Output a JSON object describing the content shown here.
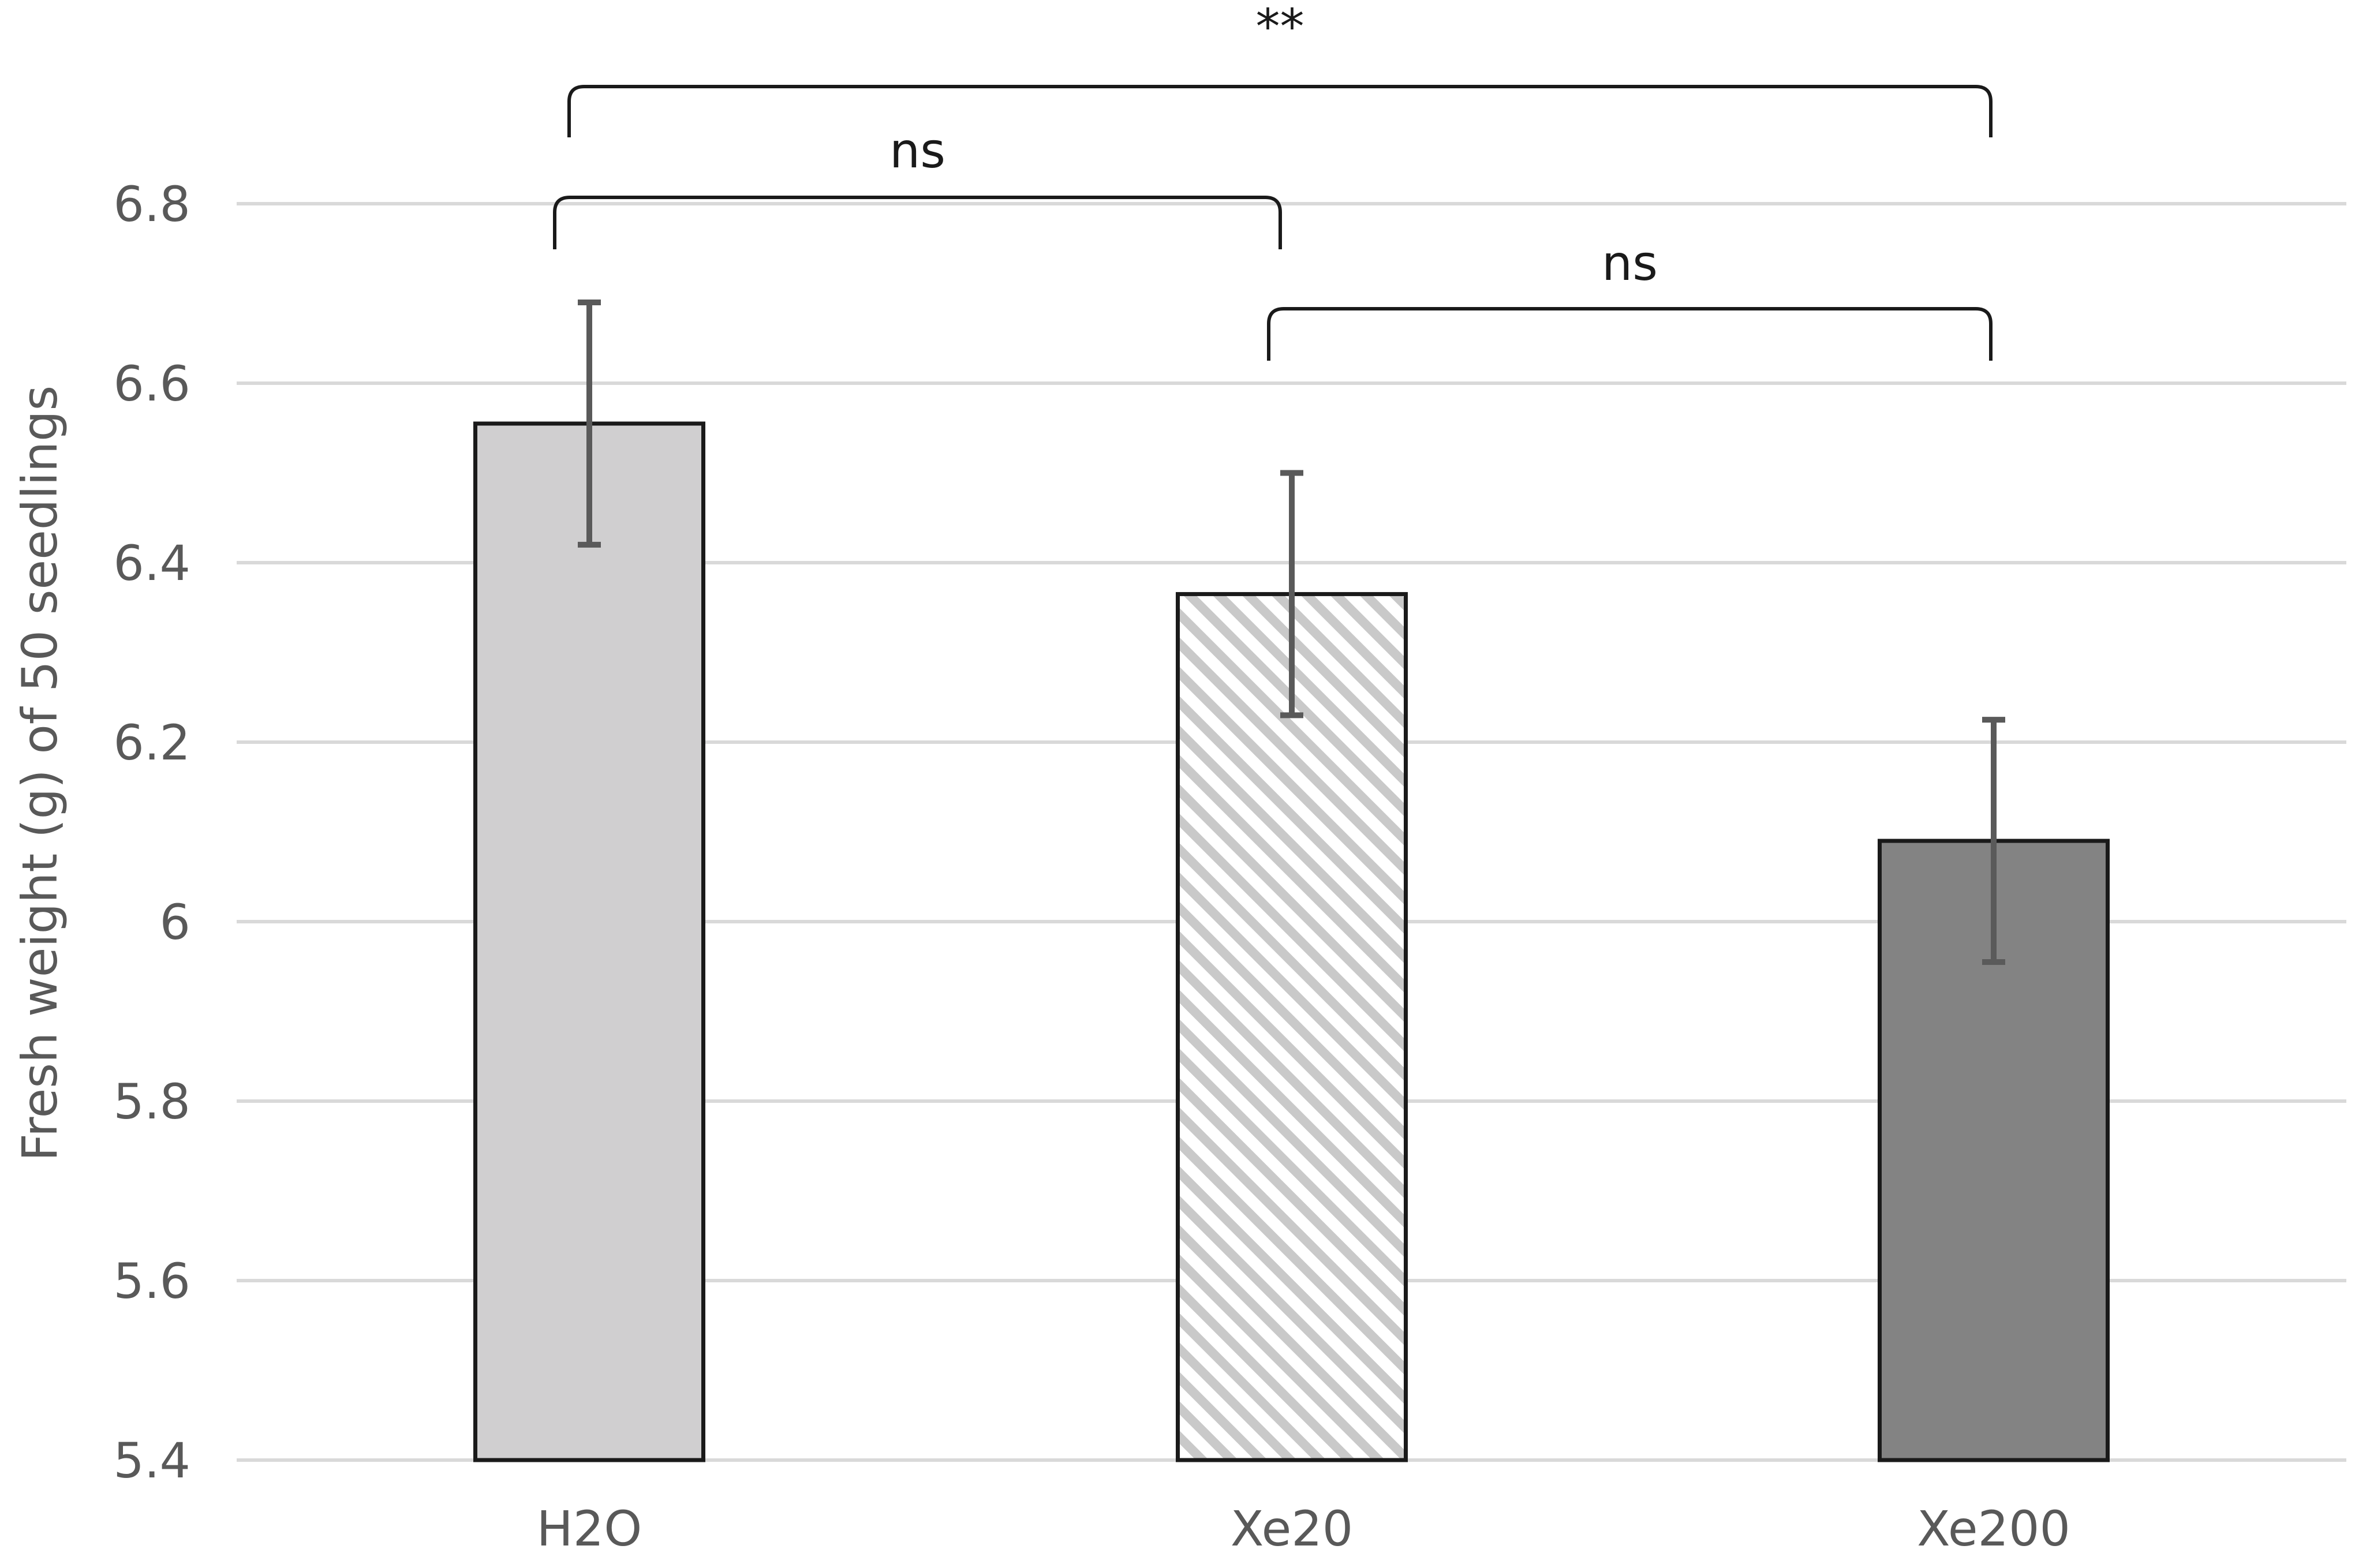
{
  "chart_data": {
    "type": "bar",
    "title": "",
    "xlabel": "",
    "ylabel": "Fresh weight (g) of 50 seedlings",
    "categories": [
      "H2O",
      "Xe20",
      "Xe200"
    ],
    "values": [
      6.555,
      6.365,
      6.09
    ],
    "error": [
      0.135,
      0.135,
      0.135
    ],
    "ylim": [
      5.4,
      6.8
    ],
    "yticks": [
      5.4,
      5.6,
      5.8,
      6.0,
      6.2,
      6.4,
      6.6,
      6.8
    ],
    "ytick_labels": [
      "5.4",
      "5.6",
      "5.8",
      "6",
      "6.2",
      "6.4",
      "6.6",
      "6.8"
    ],
    "grid": true,
    "bar_styles": [
      {
        "fill": "#d0cfd0",
        "pattern": "solid"
      },
      {
        "fill": "#ffffff",
        "pattern": "diagonal-stripes",
        "stripe_color": "#c9c9c9"
      },
      {
        "fill": "#838383",
        "pattern": "solid"
      }
    ],
    "colors": {
      "bar_edge": "#1a1a1a",
      "error_bar": "#5a5a5a",
      "grid": "#d9d9d9",
      "tick_label": "#595959",
      "annotation": "#1a1a1a"
    },
    "annotations": [
      {
        "from": "H2O",
        "to": "Xe200",
        "label": "**",
        "level": 3
      },
      {
        "from": "H2O",
        "to": "Xe20",
        "label": "ns",
        "level": 2
      },
      {
        "from": "Xe20",
        "to": "Xe200",
        "label": "ns",
        "level": 1
      }
    ]
  }
}
